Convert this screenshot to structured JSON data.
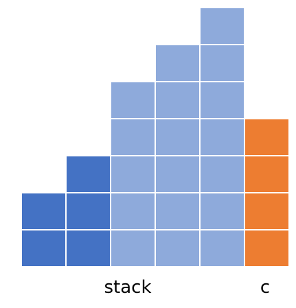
{
  "colors": {
    "dark_block": "#4472c4",
    "light_block": "#8eaadb",
    "accent_block": "#ed7d31",
    "cell_border": "#ffffff",
    "background": "#ffffff"
  },
  "columns": [
    {
      "height": 2,
      "color": "dark_block"
    },
    {
      "height": 3,
      "color": "dark_block"
    },
    {
      "height": 5,
      "color": "light_block"
    },
    {
      "height": 6,
      "color": "light_block"
    },
    {
      "height": 7,
      "color": "light_block"
    },
    {
      "height": 4,
      "color": "accent_block"
    }
  ],
  "labels": {
    "stack": "stack",
    "c": "c"
  }
}
